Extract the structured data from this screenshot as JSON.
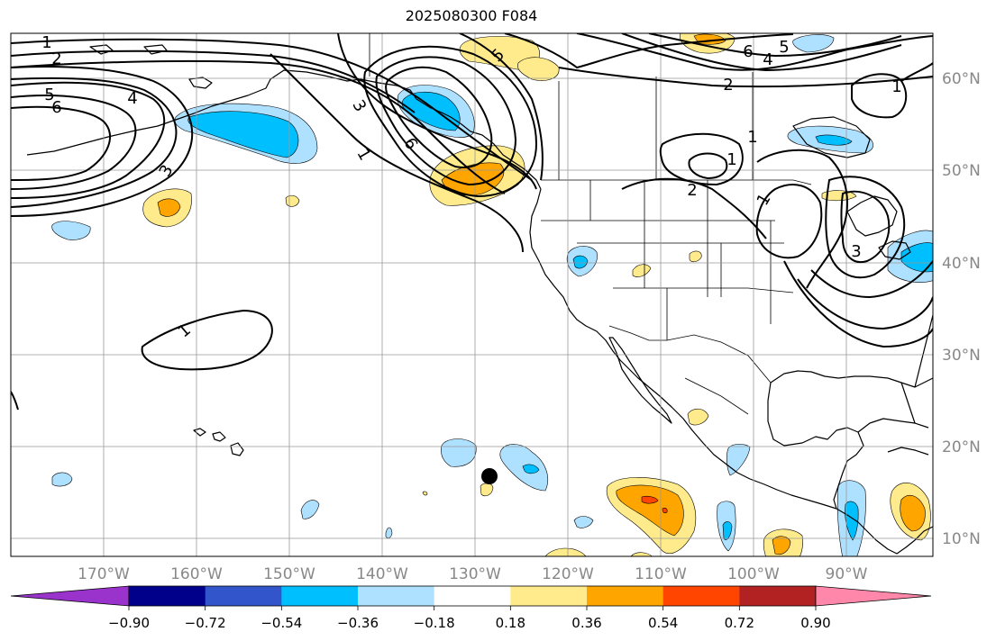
{
  "title": "2025080300 F084",
  "longitude_labels": [
    "170°W",
    "160°W",
    "150°W",
    "140°W",
    "130°W",
    "120°W",
    "110°W",
    "100°W",
    "90°W"
  ],
  "latitude_labels": [
    "60°N",
    "50°N",
    "40°N",
    "30°N",
    "20°N",
    "10°N"
  ],
  "contour_labels": [
    "1",
    "2",
    "3",
    "4",
    "5",
    "6"
  ],
  "colorbar": {
    "tick_labels": [
      "−0.90",
      "−0.72",
      "−0.54",
      "−0.36",
      "−0.18",
      "0.18",
      "0.36",
      "0.54",
      "0.72",
      "0.90"
    ],
    "under_color": "#9933cc",
    "over_color": "#ff88aa",
    "bins": [
      {
        "color": "#00008b"
      },
      {
        "color": "#3355cc"
      },
      {
        "color": "#00bfff"
      },
      {
        "color": "#aee0ff"
      },
      {
        "color": "#ffffff"
      },
      {
        "color": "#ffeb8c"
      },
      {
        "color": "#ffa500"
      },
      {
        "color": "#ff4500"
      },
      {
        "color": "#b22222"
      }
    ]
  },
  "colors": {
    "light_blue": "#aee0ff",
    "blue": "#00bfff",
    "yellow": "#ffeb8c",
    "orange": "#ffa500",
    "red": "#ff4500",
    "grid": "#999999",
    "contour": "#000000",
    "axis_label": "#888888"
  },
  "marker": {
    "type": "black-dot",
    "lon": -128.5,
    "lat": 16.8
  }
}
